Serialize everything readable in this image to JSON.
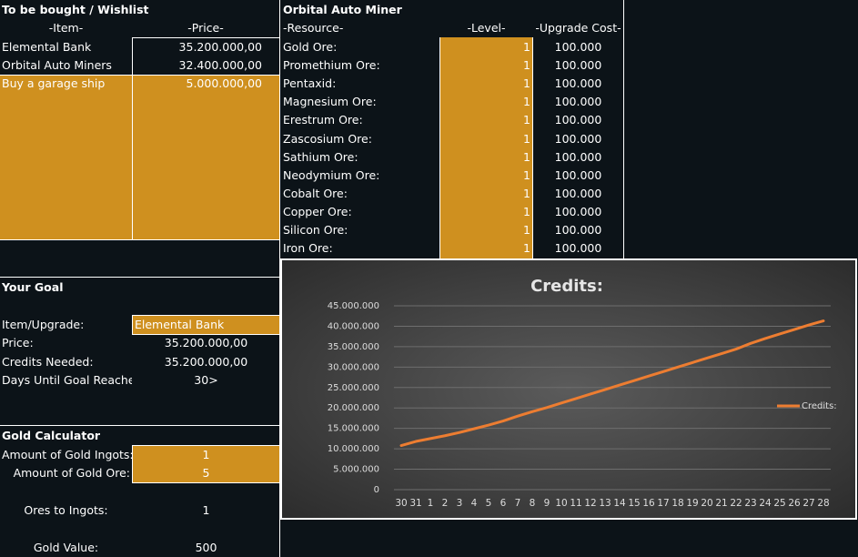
{
  "wishlist": {
    "title": "To be bought / Wishlist",
    "headers": [
      "-Item-",
      "-Price-"
    ],
    "rows": [
      [
        "Elemental Bank",
        "35.200.000,00"
      ],
      [
        "Orbital Auto Miners",
        "32.400.000,00"
      ],
      [
        "Buy a garage ship",
        "5.000.000,00"
      ]
    ]
  },
  "goal": {
    "title": "Your Goal",
    "rows": [
      [
        "Item/Upgrade:",
        "Elemental Bank"
      ],
      [
        "Price:",
        "35.200.000,00"
      ],
      [
        "Credits Needed:",
        "35.200.000,00"
      ],
      [
        "Days Until Goal Reached",
        "30>"
      ]
    ]
  },
  "gold_calculator": {
    "title": "Gold Calculator",
    "rows": [
      [
        "Amount of Gold Ingots:",
        "1"
      ],
      [
        "Amount of Gold Ore:",
        "5"
      ],
      [
        "Ores to Ingots:",
        "1"
      ],
      [
        "Gold Value:",
        "500"
      ]
    ]
  },
  "miner": {
    "title": "Orbital Auto Miner",
    "headers": [
      "-Resource-",
      "-Level-",
      "-Upgrade Cost-"
    ],
    "rows": [
      [
        "Gold Ore:",
        "1",
        "100.000"
      ],
      [
        "Promethium Ore:",
        "1",
        "100.000"
      ],
      [
        "Pentaxid:",
        "1",
        "100.000"
      ],
      [
        "Magnesium Ore:",
        "1",
        "100.000"
      ],
      [
        "Erestrum Ore:",
        "1",
        "100.000"
      ],
      [
        "Zascosium Ore:",
        "1",
        "100.000"
      ],
      [
        "Sathium Ore:",
        "1",
        "100.000"
      ],
      [
        "Neodymium Ore:",
        "1",
        "100.000"
      ],
      [
        "Cobalt Ore:",
        "1",
        "100.000"
      ],
      [
        "Copper Ore:",
        "1",
        "100.000"
      ],
      [
        "Silicon Ore:",
        "1",
        "100.000"
      ],
      [
        "Iron Ore:",
        "1",
        "100.000"
      ]
    ]
  },
  "chart_data": {
    "type": "line",
    "title": "Credits:",
    "categories": [
      "30",
      "31",
      "1",
      "2",
      "3",
      "4",
      "5",
      "6",
      "7",
      "8",
      "9",
      "10",
      "11",
      "12",
      "13",
      "14",
      "15",
      "16",
      "17",
      "18",
      "19",
      "20",
      "21",
      "22",
      "23",
      "24",
      "25",
      "26",
      "27",
      "28"
    ],
    "series": [
      {
        "name": "Credits:",
        "color": "#ed7d31",
        "values": [
          10800000,
          11800000,
          12500000,
          13200000,
          14000000,
          14900000,
          15800000,
          16800000,
          18000000,
          19100000,
          20100000,
          21200000,
          22300000,
          23400000,
          24500000,
          25600000,
          26700000,
          27800000,
          28900000,
          30000000,
          31100000,
          32200000,
          33300000,
          34400000,
          35800000,
          37000000,
          38100000,
          39200000,
          40300000,
          41300000
        ]
      }
    ],
    "ylim": [
      0,
      45000000
    ],
    "yticks": [
      0,
      {
        "value": 5000000,
        "label": "5.000.000"
      },
      {
        "value": 10000000,
        "label": "10.000.000"
      },
      {
        "value": 15000000,
        "label": "15.000.000"
      },
      {
        "value": 20000000,
        "label": "20.000.000"
      },
      {
        "value": 25000000,
        "label": "25.000.000"
      },
      {
        "value": 30000000,
        "label": "30.000.000"
      },
      {
        "value": 35000000,
        "label": "35.000.000"
      },
      {
        "value": 40000000,
        "label": "40.000.000"
      },
      {
        "value": 45000000,
        "label": "45.000.000"
      }
    ],
    "grid": true,
    "legend": "right"
  }
}
